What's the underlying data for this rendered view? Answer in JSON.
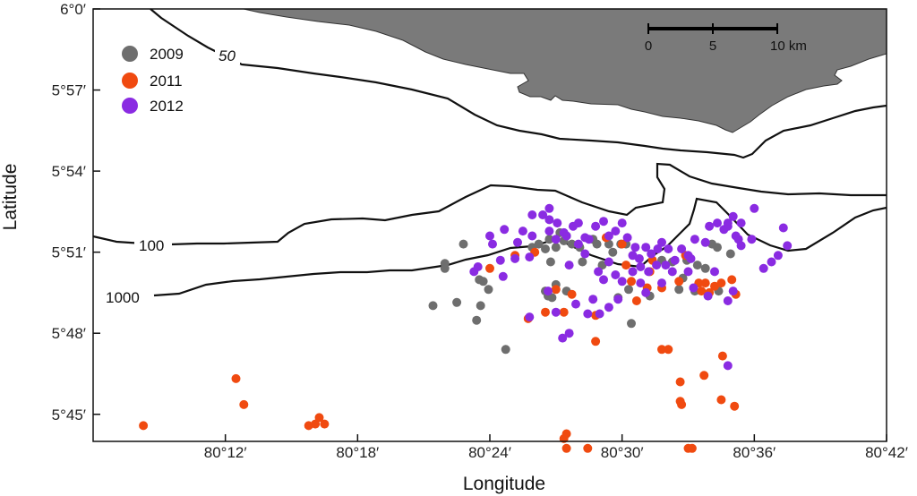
{
  "chart_data": {
    "type": "scatter",
    "title": "",
    "xlabel": "Longitude",
    "ylabel": "Latitude",
    "xlim": [
      80.1,
      80.7
    ],
    "ylim": [
      5.7333,
      6.0
    ],
    "x_ticks": [
      {
        "value": 80.2,
        "label": "80°12′"
      },
      {
        "value": 80.3,
        "label": "80°18′"
      },
      {
        "value": 80.4,
        "label": "80°24′"
      },
      {
        "value": 80.5,
        "label": "80°30′"
      },
      {
        "value": 80.6,
        "label": "80°36′"
      },
      {
        "value": 80.7,
        "label": "80°42′"
      }
    ],
    "y_ticks": [
      {
        "value": 5.75,
        "label": "5°45′"
      },
      {
        "value": 5.8,
        "label": "5°48′"
      },
      {
        "value": 5.85,
        "label": "5°51′"
      },
      {
        "value": 5.9,
        "label": "5°54′"
      },
      {
        "value": 5.95,
        "label": "5°57′"
      },
      {
        "value": 6.0,
        "label": "6°0′"
      }
    ],
    "legend": {
      "position": "top-left",
      "entries": [
        {
          "label": "2009",
          "color": "#6e6e6e"
        },
        {
          "label": "2011",
          "color": "#f04a10"
        },
        {
          "label": "2012",
          "color": "#8a2be2"
        }
      ]
    },
    "contour_labels": [
      {
        "text": "50",
        "lon": 80.197,
        "lat": 5.9606
      },
      {
        "text": "100",
        "lon": 80.145,
        "lat": 5.8375
      },
      {
        "text": "1000",
        "lon": 80.125,
        "lat": 5.8
      }
    ],
    "scale_bar": {
      "labels": [
        "0",
        "5",
        "10 km"
      ]
    },
    "series": [
      {
        "name": "2009",
        "color": "#6e6e6e",
        "points": [
          [
            80.38,
            5.855
          ],
          [
            80.366,
            5.843
          ],
          [
            80.366,
            5.84
          ],
          [
            80.357,
            5.817
          ],
          [
            80.375,
            5.819
          ],
          [
            80.39,
            5.808
          ],
          [
            80.393,
            5.817
          ],
          [
            80.399,
            5.827
          ],
          [
            80.395,
            5.832
          ],
          [
            80.392,
            5.833
          ],
          [
            80.412,
            5.79
          ],
          [
            80.432,
            5.853
          ],
          [
            80.437,
            5.855
          ],
          [
            80.442,
            5.852
          ],
          [
            80.445,
            5.858
          ],
          [
            80.45,
            5.853
          ],
          [
            80.453,
            5.862
          ],
          [
            80.458,
            5.86
          ],
          [
            80.462,
            5.855
          ],
          [
            80.468,
            5.853
          ],
          [
            80.481,
            5.855
          ],
          [
            80.49,
            5.855
          ],
          [
            80.499,
            5.855
          ],
          [
            80.478,
            5.858
          ],
          [
            80.456,
            5.857
          ],
          [
            80.45,
            5.83
          ],
          [
            80.447,
            5.822
          ],
          [
            80.444,
            5.823
          ],
          [
            80.442,
            5.826
          ],
          [
            80.446,
            5.844
          ],
          [
            80.47,
            5.844
          ],
          [
            80.485,
            5.842
          ],
          [
            80.493,
            5.85
          ],
          [
            80.497,
            5.822
          ],
          [
            80.503,
            5.855
          ],
          [
            80.505,
            5.827
          ],
          [
            80.507,
            5.806
          ],
          [
            80.521,
            5.823
          ],
          [
            80.53,
            5.845
          ],
          [
            80.538,
            5.844
          ],
          [
            80.543,
            5.827
          ],
          [
            80.555,
            5.826
          ],
          [
            80.557,
            5.842
          ],
          [
            80.563,
            5.84
          ],
          [
            80.568,
            5.855
          ],
          [
            80.572,
            5.853
          ],
          [
            80.573,
            5.826
          ],
          [
            80.582,
            5.849
          ],
          [
            80.546,
            5.834
          ],
          [
            80.549,
            5.845
          ],
          [
            80.458,
            5.826
          ]
        ]
      },
      {
        "name": "2011",
        "color": "#f04a10",
        "points": [
          [
            80.138,
            5.743
          ],
          [
            80.208,
            5.772
          ],
          [
            80.214,
            5.756
          ],
          [
            80.263,
            5.743
          ],
          [
            80.268,
            5.744
          ],
          [
            80.271,
            5.748
          ],
          [
            80.275,
            5.744
          ],
          [
            80.4,
            5.84
          ],
          [
            80.419,
            5.848
          ],
          [
            80.434,
            5.85
          ],
          [
            80.45,
            5.827
          ],
          [
            80.462,
            5.824
          ],
          [
            80.442,
            5.813
          ],
          [
            80.429,
            5.809
          ],
          [
            80.456,
            5.813
          ],
          [
            80.48,
            5.811
          ],
          [
            80.48,
            5.795
          ],
          [
            80.456,
            5.735
          ],
          [
            80.458,
            5.738
          ],
          [
            80.458,
            5.729
          ],
          [
            80.474,
            5.729
          ],
          [
            80.488,
            5.859
          ],
          [
            80.5,
            5.855
          ],
          [
            80.503,
            5.842
          ],
          [
            80.507,
            5.832
          ],
          [
            80.519,
            5.828
          ],
          [
            80.521,
            5.838
          ],
          [
            80.523,
            5.845
          ],
          [
            80.53,
            5.828
          ],
          [
            80.558,
            5.831
          ],
          [
            80.563,
            5.831
          ],
          [
            80.566,
            5.825
          ],
          [
            80.57,
            5.829
          ],
          [
            80.575,
            5.831
          ],
          [
            80.583,
            5.833
          ],
          [
            80.56,
            5.826
          ],
          [
            80.53,
            5.79
          ],
          [
            80.535,
            5.79
          ],
          [
            80.544,
            5.758
          ],
          [
            80.544,
            5.77
          ],
          [
            80.545,
            5.756
          ],
          [
            80.55,
            5.729
          ],
          [
            80.553,
            5.729
          ],
          [
            80.562,
            5.774
          ],
          [
            80.575,
            5.759
          ],
          [
            80.576,
            5.786
          ],
          [
            80.585,
            5.755
          ],
          [
            80.586,
            5.824
          ],
          [
            80.548,
            5.848
          ],
          [
            80.543,
            5.832
          ],
          [
            80.511,
            5.82
          ]
        ]
      },
      {
        "name": "2012",
        "color": "#8a2be2",
        "points": [
          [
            80.388,
            5.838
          ],
          [
            80.391,
            5.841
          ],
          [
            80.402,
            5.855
          ],
          [
            80.408,
            5.845
          ],
          [
            80.411,
            5.864
          ],
          [
            80.419,
            5.846
          ],
          [
            80.421,
            5.856
          ],
          [
            80.425,
            5.863
          ],
          [
            80.432,
            5.86
          ],
          [
            80.44,
            5.873
          ],
          [
            80.445,
            5.863
          ],
          [
            80.451,
            5.868
          ],
          [
            80.456,
            5.862
          ],
          [
            80.46,
            5.842
          ],
          [
            80.463,
            5.866
          ],
          [
            80.467,
            5.868
          ],
          [
            80.472,
            5.859
          ],
          [
            80.48,
            5.866
          ],
          [
            80.486,
            5.869
          ],
          [
            80.49,
            5.86
          ],
          [
            80.495,
            5.863
          ],
          [
            80.5,
            5.868
          ],
          [
            80.504,
            5.859
          ],
          [
            80.51,
            5.853
          ],
          [
            80.513,
            5.846
          ],
          [
            80.518,
            5.853
          ],
          [
            80.522,
            5.849
          ],
          [
            80.527,
            5.852
          ],
          [
            80.53,
            5.856
          ],
          [
            80.535,
            5.852
          ],
          [
            80.54,
            5.845
          ],
          [
            80.545,
            5.852
          ],
          [
            80.55,
            5.848
          ],
          [
            80.555,
            5.858
          ],
          [
            80.563,
            5.856
          ],
          [
            80.566,
            5.866
          ],
          [
            80.572,
            5.868
          ],
          [
            80.577,
            5.864
          ],
          [
            80.58,
            5.866
          ],
          [
            80.584,
            5.872
          ],
          [
            80.588,
            5.858
          ],
          [
            80.59,
            5.854
          ],
          [
            80.598,
            5.858
          ],
          [
            80.607,
            5.84
          ],
          [
            80.613,
            5.844
          ],
          [
            80.618,
            5.848
          ],
          [
            80.625,
            5.854
          ],
          [
            80.622,
            5.865
          ],
          [
            80.6,
            5.877
          ],
          [
            80.432,
            5.873
          ],
          [
            80.445,
            5.87
          ],
          [
            80.458,
            5.86
          ],
          [
            80.4,
            5.86
          ],
          [
            80.41,
            5.835
          ],
          [
            80.43,
            5.847
          ],
          [
            80.43,
            5.81
          ],
          [
            80.444,
            5.826
          ],
          [
            80.45,
            5.813
          ],
          [
            80.455,
            5.797
          ],
          [
            80.46,
            5.8
          ],
          [
            80.465,
            5.818
          ],
          [
            80.474,
            5.812
          ],
          [
            80.478,
            5.821
          ],
          [
            80.483,
            5.812
          ],
          [
            80.49,
            5.816
          ],
          [
            80.497,
            5.821
          ],
          [
            80.5,
            5.832
          ],
          [
            80.508,
            5.838
          ],
          [
            80.514,
            5.831
          ],
          [
            80.518,
            5.825
          ],
          [
            80.52,
            5.838
          ],
          [
            80.526,
            5.842
          ],
          [
            80.533,
            5.842
          ],
          [
            80.538,
            5.838
          ],
          [
            80.55,
            5.838
          ],
          [
            80.554,
            5.828
          ],
          [
            80.565,
            5.823
          ],
          [
            80.58,
            5.82
          ],
          [
            80.58,
            5.868
          ],
          [
            80.57,
            5.838
          ],
          [
            80.58,
            5.78
          ],
          [
            80.584,
            5.826
          ],
          [
            80.586,
            5.86
          ],
          [
            80.59,
            5.868
          ],
          [
            80.445,
            5.877
          ],
          [
            80.45,
            5.858
          ],
          [
            80.467,
            5.855
          ],
          [
            80.472,
            5.849
          ],
          [
            80.482,
            5.838
          ],
          [
            80.486,
            5.833
          ],
          [
            80.475,
            5.858
          ],
          [
            80.49,
            5.844
          ],
          [
            80.495,
            5.836
          ],
          [
            80.508,
            5.848
          ],
          [
            80.514,
            5.841
          ],
          [
            80.53,
            5.831
          ],
          [
            80.552,
            5.846
          ]
        ]
      }
    ]
  }
}
